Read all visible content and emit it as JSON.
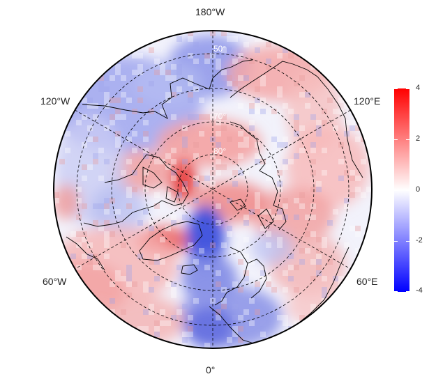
{
  "map": {
    "projection": "north-polar-stereographic",
    "longitude_labels": {
      "top": "180°W",
      "upper_left": "120°W",
      "upper_right": "120°E",
      "lower_left": "60°W",
      "lower_right": "60°E",
      "bottom": "0°"
    },
    "latitude_labels": [
      "50°",
      "70°",
      "80°"
    ]
  },
  "colorbar": {
    "ticks": [
      "4",
      "2",
      "0",
      "-2",
      "-4"
    ],
    "min": -4,
    "max": 4,
    "colors": {
      "high": "#ff0000",
      "mid": "#ffffff",
      "low": "#0000ff"
    }
  }
}
